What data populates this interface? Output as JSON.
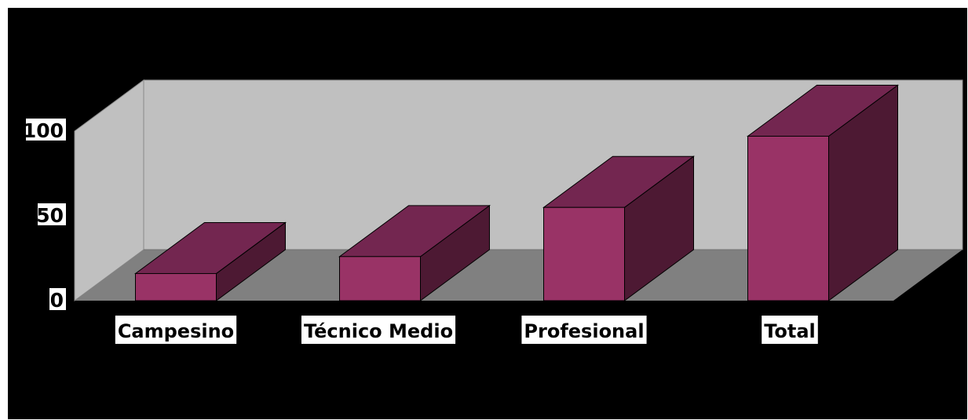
{
  "chart_data": {
    "type": "bar",
    "style": "3d-column",
    "title": "",
    "xlabel": "",
    "ylabel": "",
    "categories": [
      "Campesino",
      "Técnico Medio",
      "Profesional",
      "Total"
    ],
    "values": [
      16,
      26,
      55,
      97
    ],
    "ylim": [
      0,
      100
    ],
    "yticks": [
      0,
      50,
      100
    ],
    "ytick_labels": [
      "0",
      "50",
      "100"
    ],
    "grid": false,
    "legend": "none"
  },
  "colors": {
    "background": "#000000",
    "back_wall": "#c0c0c0",
    "side_wall": "#c0c0c0",
    "floor": "#808080",
    "bar_front": "#993366",
    "bar_top": "#732650",
    "bar_side": "#4d1933",
    "label_bg": "#ffffff"
  }
}
